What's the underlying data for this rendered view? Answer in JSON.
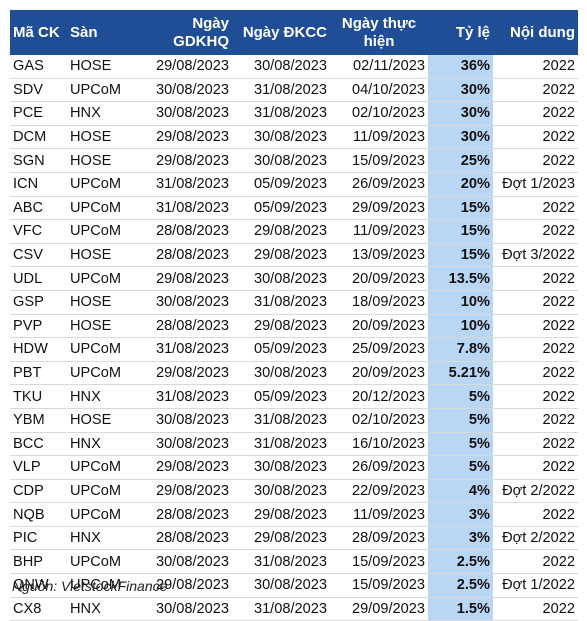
{
  "headers": {
    "ma_ck": "Mã CK",
    "san": "Sàn",
    "ngay_gdkhq": "Ngày GDKHQ",
    "ngay_dkcc": "Ngày ĐKCC",
    "ngay_thuc_hien": "Ngày thực hiện",
    "ty_le": "Tỷ lệ",
    "noi_dung": "Nội dung"
  },
  "rows": [
    {
      "ma": "GAS",
      "san": "HOSE",
      "gdkhq": "29/08/2023",
      "dkcc": "30/08/2023",
      "thuc_hien": "02/11/2023",
      "ty_le": "36%",
      "noi_dung": "2022"
    },
    {
      "ma": "SDV",
      "san": "UPCoM",
      "gdkhq": "30/08/2023",
      "dkcc": "31/08/2023",
      "thuc_hien": "04/10/2023",
      "ty_le": "30%",
      "noi_dung": "2022"
    },
    {
      "ma": "PCE",
      "san": "HNX",
      "gdkhq": "30/08/2023",
      "dkcc": "31/08/2023",
      "thuc_hien": "02/10/2023",
      "ty_le": "30%",
      "noi_dung": "2022"
    },
    {
      "ma": "DCM",
      "san": "HOSE",
      "gdkhq": "29/08/2023",
      "dkcc": "30/08/2023",
      "thuc_hien": "11/09/2023",
      "ty_le": "30%",
      "noi_dung": "2022"
    },
    {
      "ma": "SGN",
      "san": "HOSE",
      "gdkhq": "29/08/2023",
      "dkcc": "30/08/2023",
      "thuc_hien": "15/09/2023",
      "ty_le": "25%",
      "noi_dung": "2022"
    },
    {
      "ma": "ICN",
      "san": "UPCoM",
      "gdkhq": "31/08/2023",
      "dkcc": "05/09/2023",
      "thuc_hien": "26/09/2023",
      "ty_le": "20%",
      "noi_dung": "Đợt 1/2023"
    },
    {
      "ma": "ABC",
      "san": "UPCoM",
      "gdkhq": "31/08/2023",
      "dkcc": "05/09/2023",
      "thuc_hien": "29/09/2023",
      "ty_le": "15%",
      "noi_dung": "2022"
    },
    {
      "ma": "VFC",
      "san": "UPCoM",
      "gdkhq": "28/08/2023",
      "dkcc": "29/08/2023",
      "thuc_hien": "11/09/2023",
      "ty_le": "15%",
      "noi_dung": "2022"
    },
    {
      "ma": "CSV",
      "san": "HOSE",
      "gdkhq": "28/08/2023",
      "dkcc": "29/08/2023",
      "thuc_hien": "13/09/2023",
      "ty_le": "15%",
      "noi_dung": "Đợt 3/2022"
    },
    {
      "ma": "UDL",
      "san": "UPCoM",
      "gdkhq": "29/08/2023",
      "dkcc": "30/08/2023",
      "thuc_hien": "20/09/2023",
      "ty_le": "13.5%",
      "noi_dung": "2022"
    },
    {
      "ma": "GSP",
      "san": "HOSE",
      "gdkhq": "30/08/2023",
      "dkcc": "31/08/2023",
      "thuc_hien": "18/09/2023",
      "ty_le": "10%",
      "noi_dung": "2022"
    },
    {
      "ma": "PVP",
      "san": "HOSE",
      "gdkhq": "28/08/2023",
      "dkcc": "29/08/2023",
      "thuc_hien": "20/09/2023",
      "ty_le": "10%",
      "noi_dung": "2022"
    },
    {
      "ma": "HDW",
      "san": "UPCoM",
      "gdkhq": "31/08/2023",
      "dkcc": "05/09/2023",
      "thuc_hien": "25/09/2023",
      "ty_le": "7.8%",
      "noi_dung": "2022"
    },
    {
      "ma": "PBT",
      "san": "UPCoM",
      "gdkhq": "29/08/2023",
      "dkcc": "30/08/2023",
      "thuc_hien": "20/09/2023",
      "ty_le": "5.21%",
      "noi_dung": "2022"
    },
    {
      "ma": "TKU",
      "san": "HNX",
      "gdkhq": "31/08/2023",
      "dkcc": "05/09/2023",
      "thuc_hien": "20/12/2023",
      "ty_le": "5%",
      "noi_dung": "2022"
    },
    {
      "ma": "YBM",
      "san": "HOSE",
      "gdkhq": "30/08/2023",
      "dkcc": "31/08/2023",
      "thuc_hien": "02/10/2023",
      "ty_le": "5%",
      "noi_dung": "2022"
    },
    {
      "ma": "BCC",
      "san": "HNX",
      "gdkhq": "30/08/2023",
      "dkcc": "31/08/2023",
      "thuc_hien": "16/10/2023",
      "ty_le": "5%",
      "noi_dung": "2022"
    },
    {
      "ma": "VLP",
      "san": "UPCoM",
      "gdkhq": "29/08/2023",
      "dkcc": "30/08/2023",
      "thuc_hien": "26/09/2023",
      "ty_le": "5%",
      "noi_dung": "2022"
    },
    {
      "ma": "CDP",
      "san": "UPCoM",
      "gdkhq": "29/08/2023",
      "dkcc": "30/08/2023",
      "thuc_hien": "22/09/2023",
      "ty_le": "4%",
      "noi_dung": "Đợt 2/2022"
    },
    {
      "ma": "NQB",
      "san": "UPCoM",
      "gdkhq": "28/08/2023",
      "dkcc": "29/08/2023",
      "thuc_hien": "11/09/2023",
      "ty_le": "3%",
      "noi_dung": "2022"
    },
    {
      "ma": "PIC",
      "san": "HNX",
      "gdkhq": "28/08/2023",
      "dkcc": "29/08/2023",
      "thuc_hien": "28/09/2023",
      "ty_le": "3%",
      "noi_dung": "Đợt 2/2022"
    },
    {
      "ma": "BHP",
      "san": "UPCoM",
      "gdkhq": "30/08/2023",
      "dkcc": "31/08/2023",
      "thuc_hien": "15/09/2023",
      "ty_le": "2.5%",
      "noi_dung": "2022"
    },
    {
      "ma": "QNW",
      "san": "UPCoM",
      "gdkhq": "29/08/2023",
      "dkcc": "30/08/2023",
      "thuc_hien": "15/09/2023",
      "ty_le": "2.5%",
      "noi_dung": "Đợt 1/2022"
    },
    {
      "ma": "CX8",
      "san": "HNX",
      "gdkhq": "30/08/2023",
      "dkcc": "31/08/2023",
      "thuc_hien": "29/09/2023",
      "ty_le": "1.5%",
      "noi_dung": "2022"
    }
  ],
  "source": "Nguồn: VietstockFinance",
  "colors": {
    "header_bg": "#1f4e96",
    "rate_column_bg": "#b9d7f5"
  }
}
